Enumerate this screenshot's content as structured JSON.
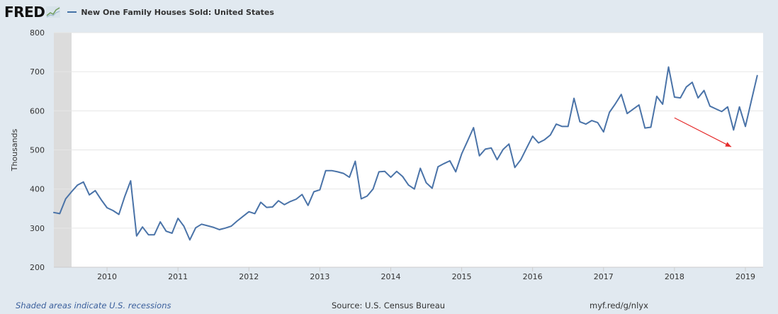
{
  "header": {
    "logo_text": "FRED",
    "series_title": "New One Family Houses Sold: United States"
  },
  "footer": {
    "recession_note": "Shaded areas indicate U.S. recessions",
    "source": "Source: U.S. Census Bureau",
    "link": "myf.red/g/nlyx"
  },
  "colors": {
    "line": "#4a73a8",
    "plot_bg": "#ffffff",
    "page_bg": "#e1e9f0",
    "grid": "#e6e6e6",
    "recession": "#dcdcdc",
    "arrow": "#e52b2b"
  },
  "chart_data": {
    "type": "line",
    "title": "New One Family Houses Sold: United States",
    "ylabel": "Thousands",
    "xlabel": "",
    "ylim": [
      200,
      800
    ],
    "yticks": [
      200,
      300,
      400,
      500,
      600,
      700,
      800
    ],
    "xlim": [
      2009.25,
      2019.25
    ],
    "xticks": [
      "2010",
      "2011",
      "2012",
      "2013",
      "2014",
      "2015",
      "2016",
      "2017",
      "2018",
      "2019"
    ],
    "grid": true,
    "recession_shading": [
      [
        2009.25,
        2009.5
      ]
    ],
    "series": [
      {
        "values": [
          340,
          337,
          375,
          393,
          410,
          418,
          385,
          396,
          373,
          352,
          345,
          335,
          381,
          421,
          280,
          303,
          283,
          283,
          316,
          292,
          287,
          325,
          305,
          270,
          301,
          310,
          306,
          302,
          296,
          300,
          305,
          318,
          330,
          342,
          337,
          366,
          353,
          354,
          370,
          360,
          368,
          374,
          386,
          358,
          393,
          398,
          447,
          447,
          444,
          440,
          430,
          471,
          375,
          382,
          400,
          444,
          445,
          430,
          445,
          432,
          410,
          400,
          453,
          416,
          402,
          457,
          465,
          472,
          444,
          490,
          523,
          557,
          485,
          502,
          505,
          475,
          501,
          515,
          455,
          475,
          505,
          535,
          518,
          526,
          538,
          566,
          560,
          560,
          632,
          572,
          566,
          575,
          570,
          546,
          596,
          618,
          642,
          593,
          604,
          615,
          556,
          558,
          637,
          617,
          712,
          635,
          633,
          661,
          673,
          633,
          652,
          612,
          605,
          598,
          610,
          551,
          610,
          560,
          625,
          690
        ]
      }
    ],
    "arrow_annotation": {
      "from": [
        2018.0,
        582
      ],
      "to": [
        2018.8,
        508
      ]
    }
  }
}
